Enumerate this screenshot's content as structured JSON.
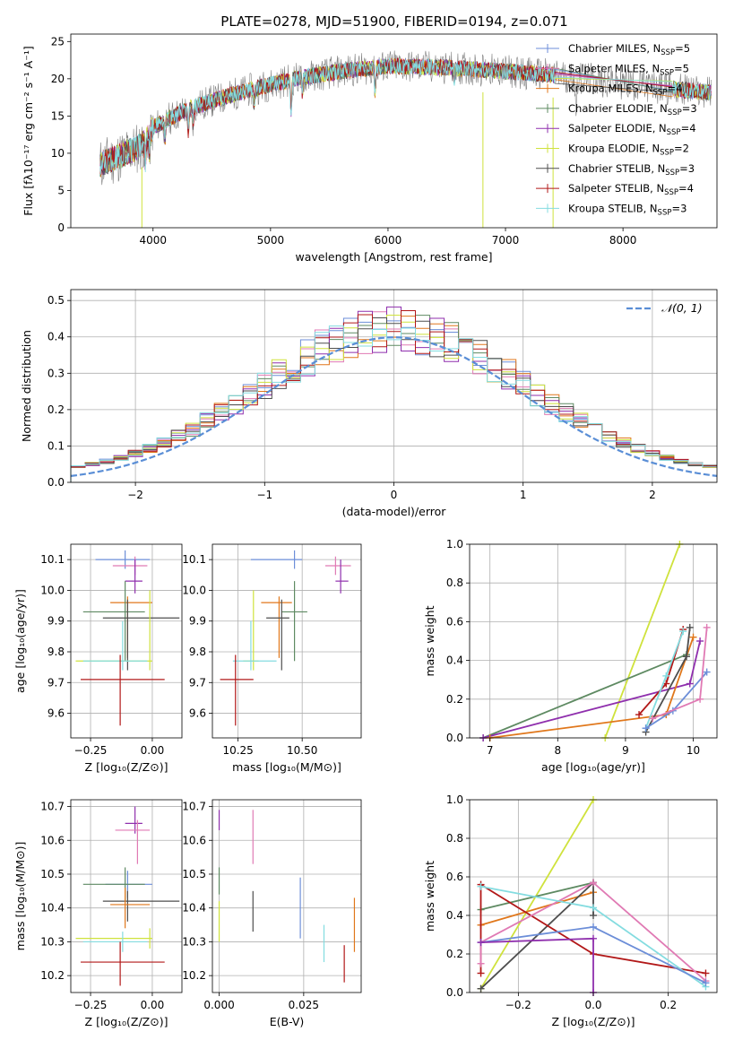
{
  "figure": {
    "title": "PLATE=0278, MJD=51900, FIBERID=0194, z=0.071"
  },
  "colors": {
    "Chabrier MILES": "#6c8ed8",
    "Salpeter MILES": "#e07ab4",
    "Kroupa MILES": "#e0771b",
    "Chabrier ELODIE": "#5e8a62",
    "Salpeter ELODIE": "#8f2fad",
    "Kroupa ELODIE": "#cfe23c",
    "Chabrier STELIB": "#4e4e4e",
    "Salpeter STELIB": "#b21818",
    "Kroupa STELIB": "#84dce0",
    "data": "#808080",
    "gaussian": "#5a8ed6"
  },
  "legend_spectrum": [
    {
      "key": "Chabrier MILES",
      "pre": "Chabrier MILES, N",
      "sub": "SSP",
      "post": "=5"
    },
    {
      "key": "Salpeter MILES",
      "pre": "Salpeter MILES, N",
      "sub": "SSP",
      "post": "=5"
    },
    {
      "key": "Kroupa MILES",
      "pre": "Kroupa MILES, N",
      "sub": "SSP",
      "post": "=4"
    },
    {
      "key": "Chabrier ELODIE",
      "pre": "Chabrier ELODIE, N",
      "sub": "SSP",
      "post": "=3"
    },
    {
      "key": "Salpeter ELODIE",
      "pre": "Salpeter ELODIE, N",
      "sub": "SSP",
      "post": "=4"
    },
    {
      "key": "Kroupa ELODIE",
      "pre": "Kroupa ELODIE, N",
      "sub": "SSP",
      "post": "=2"
    },
    {
      "key": "Chabrier STELIB",
      "pre": "Chabrier STELIB, N",
      "sub": "SSP",
      "post": "=3"
    },
    {
      "key": "Salpeter STELIB",
      "pre": "Salpeter STELIB, N",
      "sub": "SSP",
      "post": "=4"
    },
    {
      "key": "Kroupa STELIB",
      "pre": "Kroupa STELIB, N",
      "sub": "SSP",
      "post": "=3"
    }
  ],
  "legend_residual": "𝒩(0, 1)",
  "chart_data": [
    {
      "id": "spectrum",
      "type": "line",
      "xlabel": "wavelength [Angstrom, rest frame]",
      "ylabel": "Flux [fλ10⁻¹⁷ erg cm⁻² s⁻¹ A⁻¹]",
      "xlim": [
        3300,
        8800
      ],
      "ylim": [
        0,
        26
      ],
      "xticks": [
        4000,
        5000,
        6000,
        7000,
        8000
      ],
      "yticks": [
        0,
        5,
        10,
        15,
        20,
        25
      ],
      "continuum": [
        [
          3550,
          8.5
        ],
        [
          3700,
          9.5
        ],
        [
          3900,
          11.0
        ],
        [
          4000,
          13.5
        ],
        [
          4300,
          16.0
        ],
        [
          4700,
          18.0
        ],
        [
          5200,
          20.0
        ],
        [
          5600,
          21.0
        ],
        [
          6000,
          21.7
        ],
        [
          6500,
          21.5
        ],
        [
          7000,
          21.0
        ],
        [
          7400,
          20.5
        ],
        [
          7800,
          19.8
        ],
        [
          8200,
          19.0
        ],
        [
          8700,
          18.2
        ]
      ],
      "absorption": [
        [
          3934,
          3.0
        ],
        [
          3969,
          2.5
        ],
        [
          4102,
          2.5
        ],
        [
          4300,
          3.0
        ],
        [
          4340,
          2.0
        ],
        [
          4861,
          2.0
        ],
        [
          5175,
          4.0
        ],
        [
          5270,
          2.0
        ],
        [
          5890,
          3.0
        ],
        [
          6563,
          1.5
        ],
        [
          7600,
          5.0
        ]
      ],
      "dips": [
        {
          "model": "Kroupa ELODIE",
          "x": 3905,
          "to": 0
        },
        {
          "model": "Kroupa ELODIE",
          "x": 6808,
          "to": 0
        },
        {
          "model": "Kroupa ELODIE",
          "x": 7405,
          "to": 0
        }
      ]
    },
    {
      "id": "residuals",
      "type": "histogram",
      "xlabel": "(data-model)/error",
      "ylabel": "Normed distribution",
      "xlim": [
        -2.5,
        2.5
      ],
      "ylim": [
        0,
        0.53
      ],
      "xticks": [
        -2,
        -1,
        0,
        1,
        2
      ],
      "yticks": [
        0.0,
        0.1,
        0.2,
        0.3,
        0.4,
        0.5
      ],
      "bins": 45,
      "overlay": "gaussian N(0,1)"
    },
    {
      "id": "age-vs-Z",
      "type": "scatter",
      "xlabel": "Z [log₁₀(Z/Z⊙)]",
      "ylabel": "age  [log₁₀(age/yr)]",
      "xlim": [
        -0.33,
        0.12
      ],
      "ylim": [
        9.52,
        10.15
      ],
      "xticks": [
        -0.25,
        0.0
      ],
      "yticks": [
        9.6,
        9.7,
        9.8,
        9.9,
        10.0,
        10.1
      ],
      "points": [
        {
          "model": "Chabrier MILES",
          "x": -0.11,
          "y": 10.1,
          "xerr": [
            0.12,
            0.1
          ],
          "yerr": [
            0.03,
            0.03
          ]
        },
        {
          "model": "Salpeter MILES",
          "x": -0.07,
          "y": 10.08,
          "xerr": [
            0.09,
            0.05
          ],
          "yerr": [
            0.03,
            0.03
          ]
        },
        {
          "model": "Salpeter ELODIE",
          "x": -0.07,
          "y": 10.03,
          "xerr": [
            0.04,
            0.03
          ],
          "yerr": [
            0.04,
            0.07
          ]
        },
        {
          "model": "Kroupa MILES",
          "x": -0.1,
          "y": 9.96,
          "xerr": [
            0.07,
            0.1
          ],
          "yerr": [
            0.18,
            0.02
          ]
        },
        {
          "model": "Chabrier ELODIE",
          "x": -0.11,
          "y": 9.93,
          "xerr": [
            0.17,
            0.08
          ],
          "yerr": [
            0.16,
            0.1
          ]
        },
        {
          "model": "Chabrier STELIB",
          "x": -0.1,
          "y": 9.91,
          "xerr": [
            0.1,
            0.21
          ],
          "yerr": [
            0.17,
            0.06
          ]
        },
        {
          "model": "Kroupa ELODIE",
          "x": -0.01,
          "y": 9.77,
          "xerr": [
            0.3,
            0.01
          ],
          "yerr": [
            0.03,
            0.23
          ]
        },
        {
          "model": "Kroupa STELIB",
          "x": -0.12,
          "y": 9.77,
          "xerr": [
            0.16,
            0.1
          ],
          "yerr": [
            0.03,
            0.13
          ]
        },
        {
          "model": "Salpeter STELIB",
          "x": -0.13,
          "y": 9.71,
          "xerr": [
            0.16,
            0.18
          ],
          "yerr": [
            0.15,
            0.08
          ]
        }
      ]
    },
    {
      "id": "age-vs-mass",
      "type": "scatter",
      "xlabel": "mass [log₁₀(M/M⊙)]",
      "ylabel": "",
      "xlim": [
        10.15,
        10.73
      ],
      "ylim": [
        9.52,
        10.15
      ],
      "xticks": [
        10.25,
        10.5
      ],
      "yticks": [
        9.6,
        9.7,
        9.8,
        9.9,
        10.0,
        10.1
      ],
      "points": [
        {
          "model": "Chabrier MILES",
          "x": 10.47,
          "y": 10.1,
          "xerr": [
            0.17,
            0.03
          ],
          "yerr": [
            0.03,
            0.03
          ]
        },
        {
          "model": "Salpeter MILES",
          "x": 10.63,
          "y": 10.08,
          "xerr": [
            0.04,
            0.06
          ],
          "yerr": [
            0.03,
            0.03
          ]
        },
        {
          "model": "Salpeter ELODIE",
          "x": 10.65,
          "y": 10.03,
          "xerr": [
            0.02,
            0.03
          ],
          "yerr": [
            0.04,
            0.07
          ]
        },
        {
          "model": "Kroupa MILES",
          "x": 10.41,
          "y": 9.96,
          "xerr": [
            0.07,
            0.05
          ],
          "yerr": [
            0.18,
            0.02
          ]
        },
        {
          "model": "Chabrier ELODIE",
          "x": 10.47,
          "y": 9.93,
          "xerr": [
            0.05,
            0.05
          ],
          "yerr": [
            0.16,
            0.1
          ]
        },
        {
          "model": "Chabrier STELIB",
          "x": 10.42,
          "y": 9.91,
          "xerr": [
            0.06,
            0.03
          ],
          "yerr": [
            0.17,
            0.06
          ]
        },
        {
          "model": "Kroupa ELODIE",
          "x": 10.31,
          "y": 9.77,
          "xerr": [
            0.04,
            0.02
          ],
          "yerr": [
            0.03,
            0.23
          ]
        },
        {
          "model": "Kroupa STELIB",
          "x": 10.3,
          "y": 9.77,
          "xerr": [
            0.07,
            0.1
          ],
          "yerr": [
            0.03,
            0.13
          ]
        },
        {
          "model": "Salpeter STELIB",
          "x": 10.24,
          "y": 9.71,
          "xerr": [
            0.06,
            0.07
          ],
          "yerr": [
            0.15,
            0.08
          ]
        }
      ]
    },
    {
      "id": "weight-vs-age",
      "type": "line",
      "xlabel": "age  [log₁₀(age/yr)]",
      "ylabel": "mass weight",
      "xlim": [
        6.7,
        10.35
      ],
      "ylim": [
        0,
        1.0
      ],
      "xticks": [
        7,
        8,
        9,
        10
      ],
      "yticks": [
        0.0,
        0.2,
        0.4,
        0.6,
        0.8,
        1.0
      ],
      "series": [
        {
          "model": "Kroupa ELODIE",
          "x": [
            8.7,
            9.8
          ],
          "y": [
            0.0,
            1.0
          ]
        },
        {
          "model": "Chabrier ELODIE",
          "x": [
            6.9,
            9.9
          ],
          "y": [
            0.0,
            0.43
          ]
        },
        {
          "model": "Salpeter ELODIE",
          "x": [
            6.9,
            9.95,
            10.1
          ],
          "y": [
            0.0,
            0.28,
            0.5
          ]
        },
        {
          "model": "Kroupa MILES",
          "x": [
            7.0,
            9.6,
            10.0
          ],
          "y": [
            0.0,
            0.12,
            0.52
          ]
        },
        {
          "model": "Salpeter STELIB",
          "x": [
            9.2,
            9.6,
            9.85
          ],
          "y": [
            0.12,
            0.28,
            0.56
          ]
        },
        {
          "model": "Chabrier STELIB",
          "x": [
            9.3,
            9.9,
            9.95
          ],
          "y": [
            0.03,
            0.42,
            0.57
          ]
        },
        {
          "model": "Kroupa STELIB",
          "x": [
            9.3,
            9.6,
            9.85
          ],
          "y": [
            0.05,
            0.32,
            0.55
          ]
        },
        {
          "model": "Chabrier MILES",
          "x": [
            9.3,
            9.7,
            10.2
          ],
          "y": [
            0.05,
            0.14,
            0.34
          ]
        },
        {
          "model": "Salpeter MILES",
          "x": [
            9.4,
            10.1,
            10.2
          ],
          "y": [
            0.1,
            0.2,
            0.57
          ]
        }
      ]
    },
    {
      "id": "mass-vs-Z",
      "type": "scatter",
      "xlabel": "Z [log₁₀(Z/Z⊙)]",
      "ylabel": "mass [log₁₀(M/M⊙)]",
      "xlim": [
        -0.33,
        0.12
      ],
      "ylim": [
        10.15,
        10.72
      ],
      "xticks": [
        -0.25,
        0.0
      ],
      "yticks": [
        10.2,
        10.3,
        10.4,
        10.5,
        10.6,
        10.7
      ],
      "points": [
        {
          "model": "Salpeter ELODIE",
          "x": -0.07,
          "y": 10.65,
          "xerr": [
            0.04,
            0.03
          ],
          "yerr": [
            0.03,
            0.05
          ]
        },
        {
          "model": "Salpeter MILES",
          "x": -0.06,
          "y": 10.63,
          "xerr": [
            0.09,
            0.05
          ],
          "yerr": [
            0.1,
            0.03
          ]
        },
        {
          "model": "Chabrier MILES",
          "x": -0.1,
          "y": 10.47,
          "xerr": [
            0.09,
            0.1
          ],
          "yerr": [
            0.04,
            0.04
          ]
        },
        {
          "model": "Chabrier ELODIE",
          "x": -0.11,
          "y": 10.47,
          "xerr": [
            0.17,
            0.08
          ],
          "yerr": [
            0.05,
            0.05
          ]
        },
        {
          "model": "Chabrier STELIB",
          "x": -0.1,
          "y": 10.42,
          "xerr": [
            0.1,
            0.21
          ],
          "yerr": [
            0.06,
            0.03
          ]
        },
        {
          "model": "Kroupa MILES",
          "x": -0.11,
          "y": 10.41,
          "xerr": [
            0.06,
            0.1
          ],
          "yerr": [
            0.07,
            0.05
          ]
        },
        {
          "model": "Kroupa ELODIE",
          "x": -0.01,
          "y": 10.31,
          "xerr": [
            0.3,
            0.01
          ],
          "yerr": [
            0.03,
            0.03
          ]
        },
        {
          "model": "Kroupa STELIB",
          "x": -0.12,
          "y": 10.3,
          "xerr": [
            0.16,
            0.1
          ],
          "yerr": [
            0.03,
            0.03
          ]
        },
        {
          "model": "Salpeter STELIB",
          "x": -0.13,
          "y": 10.24,
          "xerr": [
            0.16,
            0.18
          ],
          "yerr": [
            0.07,
            0.06
          ]
        }
      ]
    },
    {
      "id": "mass-vs-EBV",
      "type": "scatter",
      "xlabel": "E(B-V)",
      "ylabel": "",
      "xlim": [
        -0.002,
        0.042
      ],
      "ylim": [
        10.15,
        10.72
      ],
      "xticks": [
        0.0,
        0.025
      ],
      "yticks": [
        10.2,
        10.3,
        10.4,
        10.5,
        10.6,
        10.7
      ],
      "points": [
        {
          "model": "Salpeter ELODIE",
          "x": 0.0,
          "y": 10.65,
          "xerr": [
            0,
            0
          ],
          "yerr": [
            0.02,
            0.04
          ]
        },
        {
          "model": "Salpeter MILES",
          "x": 0.01,
          "y": 10.63,
          "xerr": [
            0,
            0
          ],
          "yerr": [
            0.1,
            0.06
          ]
        },
        {
          "model": "Chabrier ELODIE",
          "x": 0.0,
          "y": 10.47,
          "xerr": [
            0,
            0
          ],
          "yerr": [
            0.03,
            0.05
          ]
        },
        {
          "model": "Chabrier MILES",
          "x": 0.024,
          "y": 10.42,
          "xerr": [
            0,
            0
          ],
          "yerr": [
            0.11,
            0.07
          ]
        },
        {
          "model": "Chabrier STELIB",
          "x": 0.01,
          "y": 10.4,
          "xerr": [
            0,
            0
          ],
          "yerr": [
            0.07,
            0.05
          ]
        },
        {
          "model": "Kroupa MILES",
          "x": 0.04,
          "y": 10.36,
          "xerr": [
            0,
            0
          ],
          "yerr": [
            0.09,
            0.07
          ]
        },
        {
          "model": "Kroupa ELODIE",
          "x": 0.0,
          "y": 10.36,
          "xerr": [
            0,
            0
          ],
          "yerr": [
            0.06,
            0.06
          ]
        },
        {
          "model": "Kroupa STELIB",
          "x": 0.031,
          "y": 10.3,
          "xerr": [
            0,
            0
          ],
          "yerr": [
            0.06,
            0.05
          ]
        },
        {
          "model": "Salpeter STELIB",
          "x": 0.037,
          "y": 10.23,
          "xerr": [
            0,
            0
          ],
          "yerr": [
            0.05,
            0.06
          ]
        }
      ]
    },
    {
      "id": "weight-vs-Z",
      "type": "line",
      "xlabel": "Z [log₁₀(Z/Z⊙)]",
      "ylabel": "mass weight",
      "xlim": [
        -0.33,
        0.33
      ],
      "ylim": [
        0,
        1.0
      ],
      "xticks": [
        -0.2,
        0.0,
        0.2
      ],
      "yticks": [
        0.0,
        0.2,
        0.4,
        0.6,
        0.8,
        1.0
      ],
      "series": [
        {
          "model": "Kroupa ELODIE",
          "x": [
            -0.3,
            0.0
          ],
          "y": [
            0.02,
            1.0
          ]
        },
        {
          "model": "Chabrier ELODIE",
          "x": [
            -0.3,
            0.0
          ],
          "y": [
            0.43,
            0.57
          ]
        },
        {
          "model": "Kroupa MILES",
          "x": [
            -0.3,
            0.0
          ],
          "y": [
            0.35,
            0.52
          ]
        },
        {
          "model": "Chabrier STELIB",
          "x": [
            -0.3,
            0.0,
            0.0
          ],
          "y": [
            0.02,
            0.57,
            0.4
          ]
        },
        {
          "model": "Salpeter STELIB",
          "x": [
            -0.3,
            -0.3,
            0.0,
            0.3
          ],
          "y": [
            0.1,
            0.56,
            0.2,
            0.1
          ]
        },
        {
          "model": "Salpeter MILES",
          "x": [
            -0.3,
            -0.3,
            0.0,
            0.3
          ],
          "y": [
            0.15,
            0.26,
            0.57,
            0.06
          ]
        },
        {
          "model": "Kroupa STELIB",
          "x": [
            -0.3,
            0.0,
            0.3
          ],
          "y": [
            0.55,
            0.44,
            0.03
          ]
        },
        {
          "model": "Chabrier MILES",
          "x": [
            -0.3,
            0.0,
            0.3
          ],
          "y": [
            0.26,
            0.34,
            0.05
          ]
        },
        {
          "model": "Salpeter ELODIE",
          "x": [
            -0.3,
            0.0,
            0.0
          ],
          "y": [
            0.26,
            0.28,
            0.0
          ]
        }
      ]
    }
  ]
}
